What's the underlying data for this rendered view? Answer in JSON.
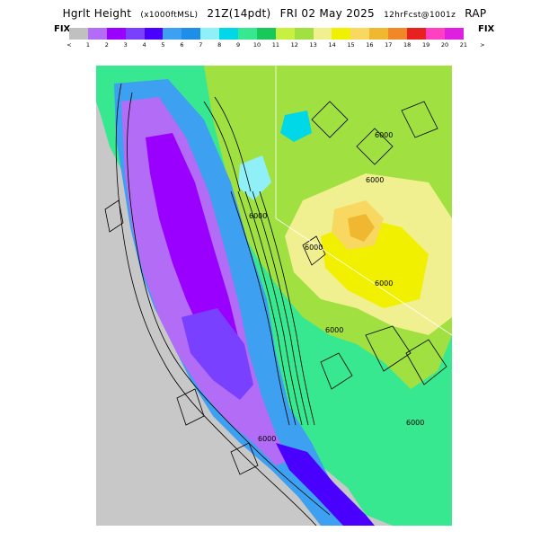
{
  "header": {
    "title_left": "Hgrlt Height",
    "title_units": "(x1000ftMSL)",
    "title_valid": "21Z(14pdt)",
    "title_date": "FRI 02 May 2025",
    "title_fcst": "12hrFcst@1001z",
    "title_model": "RAP"
  },
  "colorbar": {
    "left_label": "FIX",
    "right_label": "FIX",
    "colors": [
      "#c0c0c0",
      "#b36cf5",
      "#9a00ff",
      "#7a40ff",
      "#4a00ff",
      "#3da0f0",
      "#1e8ee8",
      "#90f0f8",
      "#00d8e8",
      "#38e890",
      "#18c858",
      "#c8f040",
      "#a0e040",
      "#f0f090",
      "#f0f000",
      "#f8d860",
      "#f0b830",
      "#f08828",
      "#e82020",
      "#ff40c0",
      "#e020e0"
    ],
    "labels": [
      "<",
      "1",
      "2",
      "3",
      "4",
      "5",
      "6",
      "7",
      "8",
      "9",
      "10",
      "11",
      "12",
      "13",
      "14",
      "15",
      "16",
      "17",
      "18",
      "19",
      "20",
      "21",
      ">"
    ]
  },
  "map": {
    "contour_labels": [
      "6000",
      "6000",
      "6000",
      "6000",
      "6000",
      "6000",
      "6000",
      "6000"
    ]
  }
}
